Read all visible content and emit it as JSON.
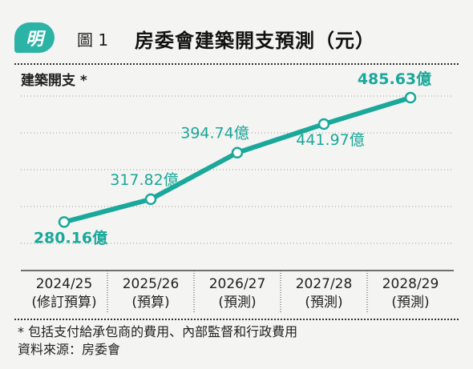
{
  "header": {
    "logo_text": "明",
    "figure_label": "圖 1",
    "title": "房委會建築開支預測（元）"
  },
  "chart_data": {
    "type": "line",
    "ylabel": "建築開支 *",
    "categories": [
      [
        "2024/25",
        "(修訂預算)"
      ],
      [
        "2025/26",
        "(預算)"
      ],
      [
        "2026/27",
        "(預測)"
      ],
      [
        "2027/28",
        "(預測)"
      ],
      [
        "2028/29",
        "(預測)"
      ]
    ],
    "values": [
      280.16,
      317.82,
      394.74,
      441.97,
      485.63
    ],
    "data_labels": [
      "280.16億",
      "317.82億",
      "394.74億",
      "441.97億",
      "485.63億"
    ],
    "ylim": [
      200,
      520
    ],
    "line_color": "#1aa89a",
    "grid": true
  },
  "footer": {
    "note": "* 包括支付給承包商的費用、內部監督和行政費用",
    "source": "資料來源：房委會"
  }
}
